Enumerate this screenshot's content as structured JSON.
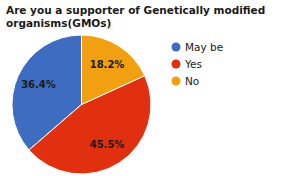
{
  "chart_data": {
    "type": "pie",
    "title": "Are you a supporter of Genetically modified organisms(GMOs)",
    "categories": [
      "May be",
      "Yes",
      "No"
    ],
    "values": [
      36.4,
      45.5,
      18.2
    ],
    "value_labels": [
      "36.4%",
      "45.5%",
      "18.2%"
    ],
    "data_labels": true,
    "colors": [
      "#3d6cc0",
      "#e03010",
      "#f0a010"
    ],
    "legend": "upper right"
  }
}
